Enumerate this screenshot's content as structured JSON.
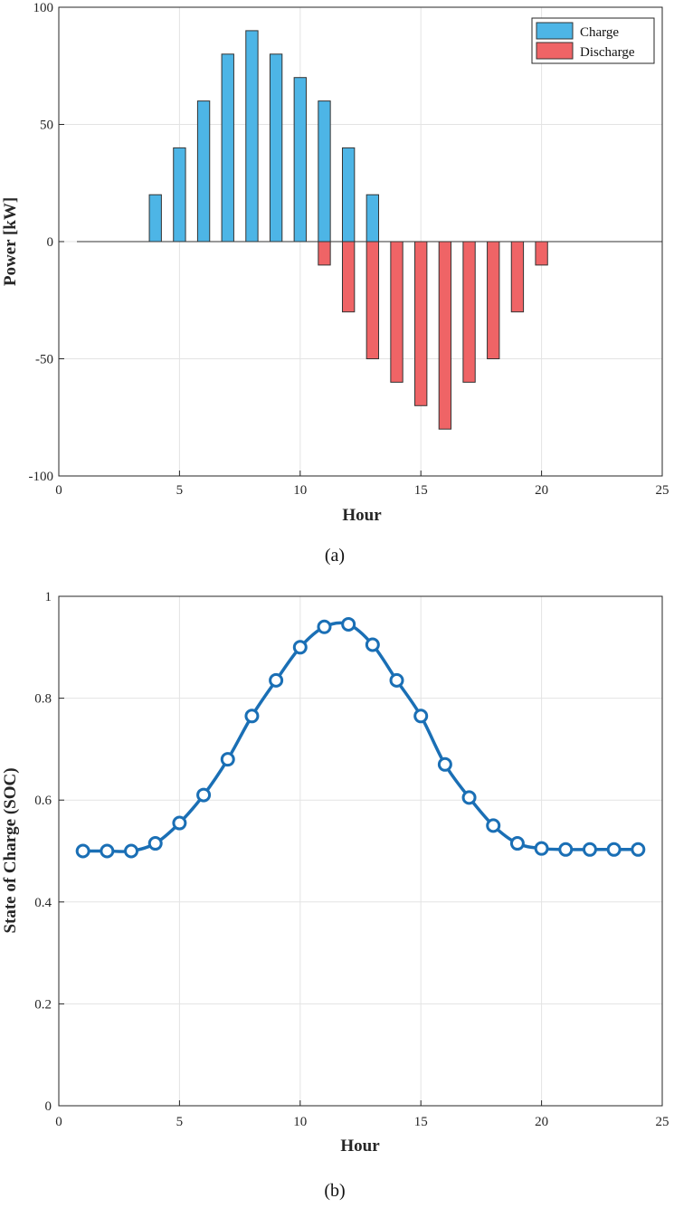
{
  "chart_data": [
    {
      "type": "bar",
      "caption": "(a)",
      "xlabel": "Hour",
      "ylabel": "Power [kW]",
      "xlim": [
        0,
        25
      ],
      "ylim": [
        -100,
        100
      ],
      "xticks": [
        0,
        5,
        10,
        15,
        20,
        25
      ],
      "yticks": [
        -100,
        -50,
        0,
        50,
        100
      ],
      "grid": true,
      "legend_position": "top-right",
      "categories": [
        1,
        2,
        3,
        4,
        5,
        6,
        7,
        8,
        9,
        10,
        11,
        12,
        13,
        14,
        15,
        16,
        17,
        18,
        19,
        20,
        21,
        22,
        23,
        24
      ],
      "series": [
        {
          "name": "Charge",
          "color": "#4db5e6",
          "values": [
            0,
            0,
            0,
            20,
            40,
            60,
            80,
            90,
            80,
            70,
            60,
            40,
            20,
            0,
            0,
            0,
            0,
            0,
            0,
            0,
            0,
            0,
            0,
            0
          ]
        },
        {
          "name": "Discharge",
          "color": "#ef6466",
          "values": [
            0,
            0,
            0,
            0,
            0,
            0,
            0,
            0,
            0,
            0,
            -10,
            -30,
            -50,
            -60,
            -70,
            -80,
            -60,
            -50,
            -30,
            -10,
            0,
            0,
            0,
            0
          ]
        }
      ]
    },
    {
      "type": "line",
      "caption": "(b)",
      "xlabel": "Hour",
      "ylabel": "State of Charge (SOC)",
      "xlim": [
        0,
        25
      ],
      "ylim": [
        0,
        1
      ],
      "xticks": [
        0,
        5,
        10,
        15,
        20,
        25
      ],
      "yticks": [
        0,
        0.2,
        0.4,
        0.6,
        0.8,
        1
      ],
      "grid": true,
      "marker": "circle",
      "series": [
        {
          "color": "#1a6fb5",
          "x": [
            1,
            2,
            3,
            4,
            5,
            6,
            7,
            8,
            9,
            10,
            11,
            12,
            13,
            14,
            15,
            16,
            17,
            18,
            19,
            20,
            21,
            22,
            23,
            24
          ],
          "y": [
            0.5,
            0.5,
            0.5,
            0.515,
            0.555,
            0.61,
            0.68,
            0.765,
            0.835,
            0.9,
            0.94,
            0.945,
            0.905,
            0.835,
            0.765,
            0.67,
            0.605,
            0.55,
            0.515,
            0.505,
            0.503,
            0.503,
            0.503,
            0.503
          ]
        }
      ]
    }
  ]
}
